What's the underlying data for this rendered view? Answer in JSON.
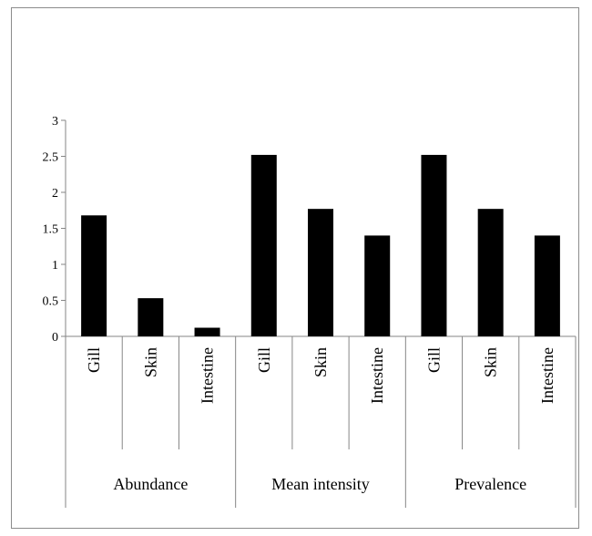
{
  "chart_data": {
    "type": "bar",
    "groups": [
      {
        "label": "Abundance",
        "categories": [
          "Gill",
          "Skin",
          "Intestine"
        ]
      },
      {
        "label": "Mean intensity",
        "categories": [
          "Gill",
          "Skin",
          "Intestine"
        ]
      },
      {
        "label": "Prevalence",
        "categories": [
          "Gill",
          "Skin",
          "Intestine"
        ]
      }
    ],
    "categories": [
      "Gill",
      "Skin",
      "Intestine",
      "Gill",
      "Skin",
      "Intestine",
      "Gill",
      "Skin",
      "Intestine"
    ],
    "values": [
      1.68,
      0.53,
      0.12,
      2.52,
      1.77,
      1.4,
      2.52,
      1.77,
      1.4
    ],
    "ylim": [
      0,
      3
    ],
    "yticks": [
      "0",
      "0.5",
      "1",
      "1.5",
      "2",
      "2.5",
      "3"
    ],
    "ytick_values": [
      0,
      0.5,
      1,
      1.5,
      2,
      2.5,
      3
    ],
    "title": "",
    "xlabel": "",
    "ylabel": "",
    "grid": false,
    "bar_color": "#000000",
    "axis_color": "#868686"
  }
}
